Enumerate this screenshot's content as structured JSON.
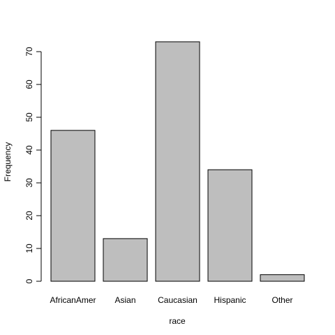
{
  "chart_data": {
    "type": "bar",
    "categories": [
      "AfricanAmer",
      "Asian",
      "Caucasian",
      "Hispanic",
      "Other"
    ],
    "values": [
      46,
      13,
      73,
      34,
      2
    ],
    "xlabel": "race",
    "ylabel": "Frequency",
    "ylim": [
      0,
      75
    ],
    "yticks": [
      0,
      10,
      20,
      30,
      40,
      50,
      60,
      70
    ],
    "grid": false,
    "bar_color": "#bebebe",
    "border_color": "#000000"
  }
}
